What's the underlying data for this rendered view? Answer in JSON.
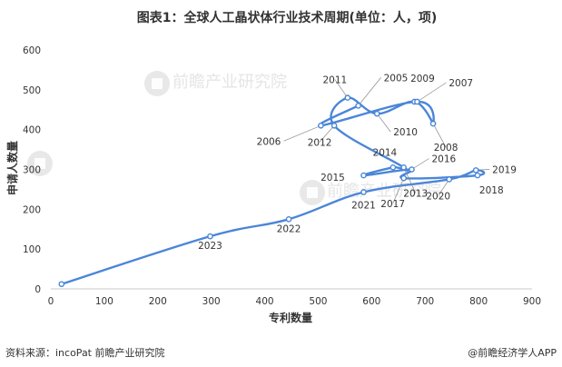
{
  "chart_data": {
    "type": "scatter",
    "title": "图表1：全球人工晶状体行业技术周期(单位：人，项)",
    "xlabel": "专利数量",
    "ylabel": "申请人数量",
    "xlim": [
      0,
      900
    ],
    "ylim": [
      0,
      600
    ],
    "x_ticks": [
      0,
      100,
      200,
      300,
      400,
      500,
      600,
      700,
      800,
      900
    ],
    "y_ticks": [
      0,
      100,
      200,
      300,
      400,
      500,
      600
    ],
    "grid": false,
    "legend": "none",
    "line_color": "#4a86d8",
    "points": [
      {
        "year": "",
        "x": 20,
        "y": 12
      },
      {
        "year": "2023",
        "x": 298,
        "y": 132
      },
      {
        "year": "2022",
        "x": 445,
        "y": 175
      },
      {
        "year": "2021",
        "x": 585,
        "y": 243
      },
      {
        "year": "2020",
        "x": 745,
        "y": 275
      },
      {
        "year": "2019",
        "x": 795,
        "y": 298
      },
      {
        "year": "2018",
        "x": 798,
        "y": 285
      },
      {
        "year": "2017",
        "x": 660,
        "y": 278
      },
      {
        "year": "2016",
        "x": 675,
        "y": 300
      },
      {
        "year": "2015",
        "x": 585,
        "y": 285
      },
      {
        "year": "2014",
        "x": 640,
        "y": 305
      },
      {
        "year": "2013",
        "x": 660,
        "y": 305
      },
      {
        "year": "2012",
        "x": 530,
        "y": 410
      },
      {
        "year": "2011",
        "x": 555,
        "y": 480
      },
      {
        "year": "2010",
        "x": 610,
        "y": 440
      },
      {
        "year": "2009",
        "x": 680,
        "y": 470
      },
      {
        "year": "2008",
        "x": 715,
        "y": 415
      },
      {
        "year": "2007",
        "x": 685,
        "y": 470
      },
      {
        "year": "2006",
        "x": 505,
        "y": 410
      },
      {
        "year": "2005",
        "x": 575,
        "y": 460
      }
    ]
  },
  "footer": {
    "source": "资料来源：incoPat 前瞻产业研究院",
    "brand": "@前瞻经济学人APP"
  },
  "watermark": {
    "text": "前瞻产业研究院"
  }
}
